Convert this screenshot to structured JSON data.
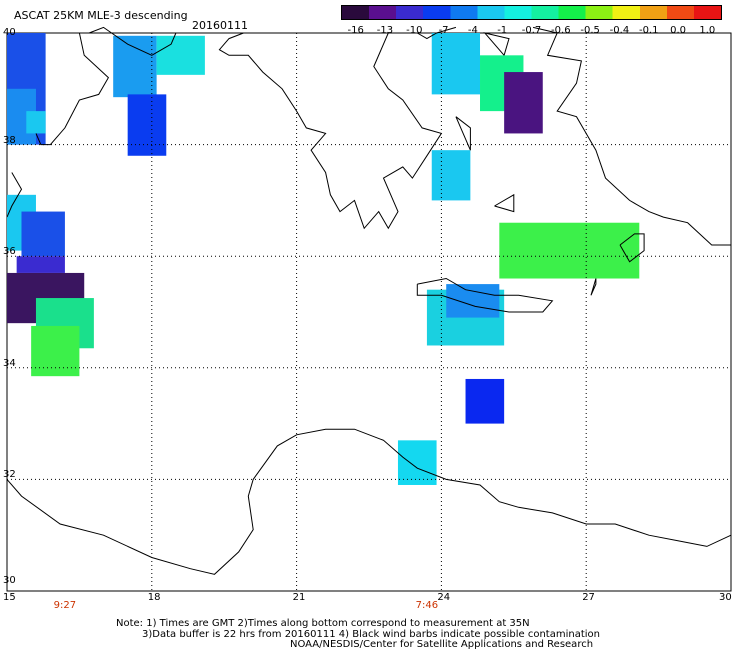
{
  "header": {
    "title": "ASCAT 25KM MLE-3 descending",
    "date": "20160111"
  },
  "colorbar": {
    "labels": [
      "-16",
      "-13",
      "-10",
      "-7",
      "-4",
      "-1",
      "-0.7",
      "-0.6",
      "-0.5",
      "-0.4",
      "-0.1",
      "0.0",
      "1.0"
    ],
    "colors": [
      "#2a0a3c",
      "#5a0f8f",
      "#3a2bd0",
      "#0a3cf0",
      "#0f7af0",
      "#1ac8f0",
      "#14f0e0",
      "#14f0a0",
      "#14f04a",
      "#8cf014",
      "#f0f014",
      "#f0a014",
      "#f04a14",
      "#e81414"
    ]
  },
  "axes": {
    "x_labels": [
      "15",
      "18",
      "21",
      "24",
      "27",
      "30"
    ],
    "y_labels": [
      "40",
      "38",
      "36",
      "34",
      "32",
      "30"
    ],
    "lon_range": [
      15,
      30
    ],
    "lat_range": [
      30,
      40
    ]
  },
  "times": [
    {
      "label": "9:27",
      "lon": 16.2
    },
    {
      "label": "7:46",
      "lon": 23.7
    }
  ],
  "notes": {
    "line1": "Note: 1) Times are GMT 2)Times along bottom correspond to measurement at 35N",
    "line2": "3)Data buffer is 22 hrs from 20160111 4) Black wind barbs indicate possible contamination",
    "line3": "NOAA/NESDIS/Center for Satellite Applications and Research"
  },
  "cells": [
    {
      "lon": 15.0,
      "lat": 40.0,
      "w": 0.8,
      "h": 2.0,
      "color": "#1a50e8"
    },
    {
      "lon": 15.0,
      "lat": 39.0,
      "w": 0.6,
      "h": 1.0,
      "color": "#1a8cf0"
    },
    {
      "lon": 15.4,
      "lat": 38.6,
      "w": 0.4,
      "h": 0.4,
      "color": "#1ac8f0"
    },
    {
      "lon": 17.2,
      "lat": 39.95,
      "w": 0.9,
      "h": 1.1,
      "color": "#1a9cf0"
    },
    {
      "lon": 18.1,
      "lat": 39.95,
      "w": 1.0,
      "h": 0.7,
      "color": "#1ae0e0"
    },
    {
      "lon": 17.5,
      "lat": 38.9,
      "w": 0.8,
      "h": 1.1,
      "color": "#0a3cf0"
    },
    {
      "lon": 15.0,
      "lat": 37.1,
      "w": 0.6,
      "h": 1.0,
      "color": "#1ac8f0"
    },
    {
      "lon": 15.3,
      "lat": 36.8,
      "w": 0.9,
      "h": 0.8,
      "color": "#1a50e8"
    },
    {
      "lon": 15.2,
      "lat": 36.0,
      "w": 1.0,
      "h": 0.3,
      "color": "#3a2bd0"
    },
    {
      "lon": 15.0,
      "lat": 35.7,
      "w": 1.6,
      "h": 0.9,
      "color": "#3a1560"
    },
    {
      "lon": 15.6,
      "lat": 35.25,
      "w": 1.2,
      "h": 0.9,
      "color": "#1ae08c"
    },
    {
      "lon": 15.5,
      "lat": 34.75,
      "w": 1.0,
      "h": 0.9,
      "color": "#3cf04a"
    },
    {
      "lon": 23.8,
      "lat": 40.0,
      "w": 1.0,
      "h": 1.1,
      "color": "#1ac8f0"
    },
    {
      "lon": 24.8,
      "lat": 39.6,
      "w": 0.9,
      "h": 1.0,
      "color": "#14f08c"
    },
    {
      "lon": 25.3,
      "lat": 39.3,
      "w": 0.8,
      "h": 1.1,
      "color": "#4a1480"
    },
    {
      "lon": 23.8,
      "lat": 37.9,
      "w": 0.8,
      "h": 0.9,
      "color": "#1ac8f0"
    },
    {
      "lon": 25.2,
      "lat": 36.6,
      "w": 2.9,
      "h": 1.0,
      "color": "#3cf04a"
    },
    {
      "lon": 23.7,
      "lat": 35.4,
      "w": 1.6,
      "h": 1.0,
      "color": "#1ad0e0"
    },
    {
      "lon": 24.1,
      "lat": 35.5,
      "w": 1.1,
      "h": 0.6,
      "color": "#1a8cf0"
    },
    {
      "lon": 24.5,
      "lat": 33.8,
      "w": 0.8,
      "h": 0.8,
      "color": "#0a28f0"
    },
    {
      "lon": 23.1,
      "lat": 32.7,
      "w": 0.8,
      "h": 0.8,
      "color": "#14d8f0"
    }
  ],
  "coastlines": [
    [
      [
        18.5,
        40.0
      ],
      [
        18.4,
        39.8
      ],
      [
        18.0,
        39.6
      ],
      [
        17.5,
        39.8
      ],
      [
        17.0,
        40.1
      ],
      [
        16.7,
        40.0
      ]
    ],
    [
      [
        15.6,
        38.2
      ],
      [
        15.7,
        38.0
      ],
      [
        15.9,
        38.0
      ],
      [
        16.2,
        38.3
      ],
      [
        16.5,
        38.8
      ],
      [
        16.9,
        38.9
      ],
      [
        17.1,
        39.2
      ],
      [
        16.6,
        39.6
      ],
      [
        16.5,
        40.0
      ]
    ],
    [
      [
        15.1,
        37.5
      ],
      [
        15.3,
        37.2
      ],
      [
        15.1,
        36.9
      ],
      [
        15.0,
        36.7
      ]
    ],
    [
      [
        19.9,
        40.0
      ],
      [
        19.6,
        39.9
      ],
      [
        19.4,
        39.7
      ],
      [
        19.6,
        39.6
      ],
      [
        20.0,
        39.6
      ],
      [
        20.3,
        39.3
      ],
      [
        20.7,
        39.0
      ],
      [
        21.0,
        38.6
      ],
      [
        21.2,
        38.3
      ],
      [
        21.6,
        38.2
      ],
      [
        21.3,
        37.9
      ],
      [
        21.6,
        37.5
      ],
      [
        21.7,
        37.1
      ],
      [
        21.9,
        36.8
      ],
      [
        22.2,
        37.0
      ],
      [
        22.4,
        36.5
      ],
      [
        22.7,
        36.8
      ],
      [
        22.9,
        36.5
      ],
      [
        23.1,
        36.8
      ],
      [
        22.8,
        37.4
      ],
      [
        23.2,
        37.6
      ],
      [
        23.4,
        37.4
      ],
      [
        23.7,
        37.8
      ],
      [
        24.0,
        38.2
      ],
      [
        23.6,
        38.3
      ],
      [
        23.2,
        38.8
      ],
      [
        22.9,
        39.0
      ],
      [
        22.6,
        39.4
      ],
      [
        22.9,
        40.0
      ]
    ],
    [
      [
        23.5,
        40.0
      ],
      [
        23.7,
        39.9
      ],
      [
        23.9,
        40.0
      ],
      [
        24.3,
        40.1
      ]
    ],
    [
      [
        25.9,
        40.1
      ],
      [
        26.4,
        40.0
      ],
      [
        26.2,
        39.6
      ],
      [
        26.9,
        39.5
      ],
      [
        26.8,
        39.1
      ],
      [
        26.4,
        38.6
      ],
      [
        26.8,
        38.5
      ],
      [
        27.2,
        37.9
      ],
      [
        27.4,
        37.4
      ],
      [
        27.9,
        37.0
      ],
      [
        28.3,
        36.8
      ],
      [
        28.6,
        36.7
      ],
      [
        29.1,
        36.6
      ],
      [
        29.6,
        36.2
      ],
      [
        30.0,
        36.2
      ]
    ],
    [
      [
        25.3,
        39.6
      ],
      [
        25.4,
        39.9
      ],
      [
        24.9,
        40.0
      ],
      [
        25.3,
        39.6
      ]
    ],
    [
      [
        23.5,
        35.5
      ],
      [
        24.1,
        35.6
      ],
      [
        24.5,
        35.4
      ],
      [
        25.1,
        35.3
      ],
      [
        25.6,
        35.3
      ],
      [
        26.3,
        35.2
      ],
      [
        26.1,
        35.0
      ],
      [
        25.4,
        35.0
      ],
      [
        24.7,
        35.1
      ],
      [
        24.0,
        35.3
      ],
      [
        23.5,
        35.3
      ],
      [
        23.5,
        35.5
      ]
    ],
    [
      [
        27.7,
        36.2
      ],
      [
        28.0,
        36.4
      ],
      [
        28.2,
        36.4
      ],
      [
        28.2,
        36.1
      ],
      [
        27.9,
        35.9
      ],
      [
        27.7,
        36.2
      ]
    ],
    [
      [
        27.2,
        35.6
      ],
      [
        27.2,
        35.5
      ],
      [
        27.1,
        35.3
      ],
      [
        27.2,
        35.6
      ]
    ],
    [
      [
        24.3,
        38.5
      ],
      [
        24.6,
        38.3
      ],
      [
        24.6,
        37.9
      ],
      [
        24.3,
        38.5
      ]
    ],
    [
      [
        25.1,
        36.9
      ],
      [
        25.5,
        37.1
      ],
      [
        25.5,
        36.8
      ],
      [
        25.1,
        36.9
      ]
    ],
    [
      [
        15.0,
        32.0
      ],
      [
        15.3,
        31.7
      ],
      [
        16.1,
        31.2
      ],
      [
        17.0,
        31.0
      ],
      [
        18.0,
        30.6
      ],
      [
        18.8,
        30.4
      ],
      [
        19.3,
        30.3
      ],
      [
        19.8,
        30.7
      ],
      [
        20.1,
        31.1
      ],
      [
        20.0,
        31.7
      ],
      [
        20.1,
        32.0
      ],
      [
        20.6,
        32.6
      ],
      [
        21.0,
        32.8
      ],
      [
        21.6,
        32.9
      ],
      [
        22.2,
        32.9
      ],
      [
        22.8,
        32.7
      ],
      [
        23.2,
        32.4
      ],
      [
        23.5,
        32.2
      ],
      [
        24.1,
        32.0
      ],
      [
        24.8,
        31.9
      ],
      [
        25.2,
        31.6
      ],
      [
        25.6,
        31.5
      ],
      [
        26.3,
        31.4
      ],
      [
        27.0,
        31.2
      ],
      [
        27.6,
        31.2
      ],
      [
        28.3,
        31.0
      ],
      [
        28.9,
        30.9
      ],
      [
        29.5,
        30.8
      ],
      [
        30.0,
        31.0
      ]
    ]
  ]
}
